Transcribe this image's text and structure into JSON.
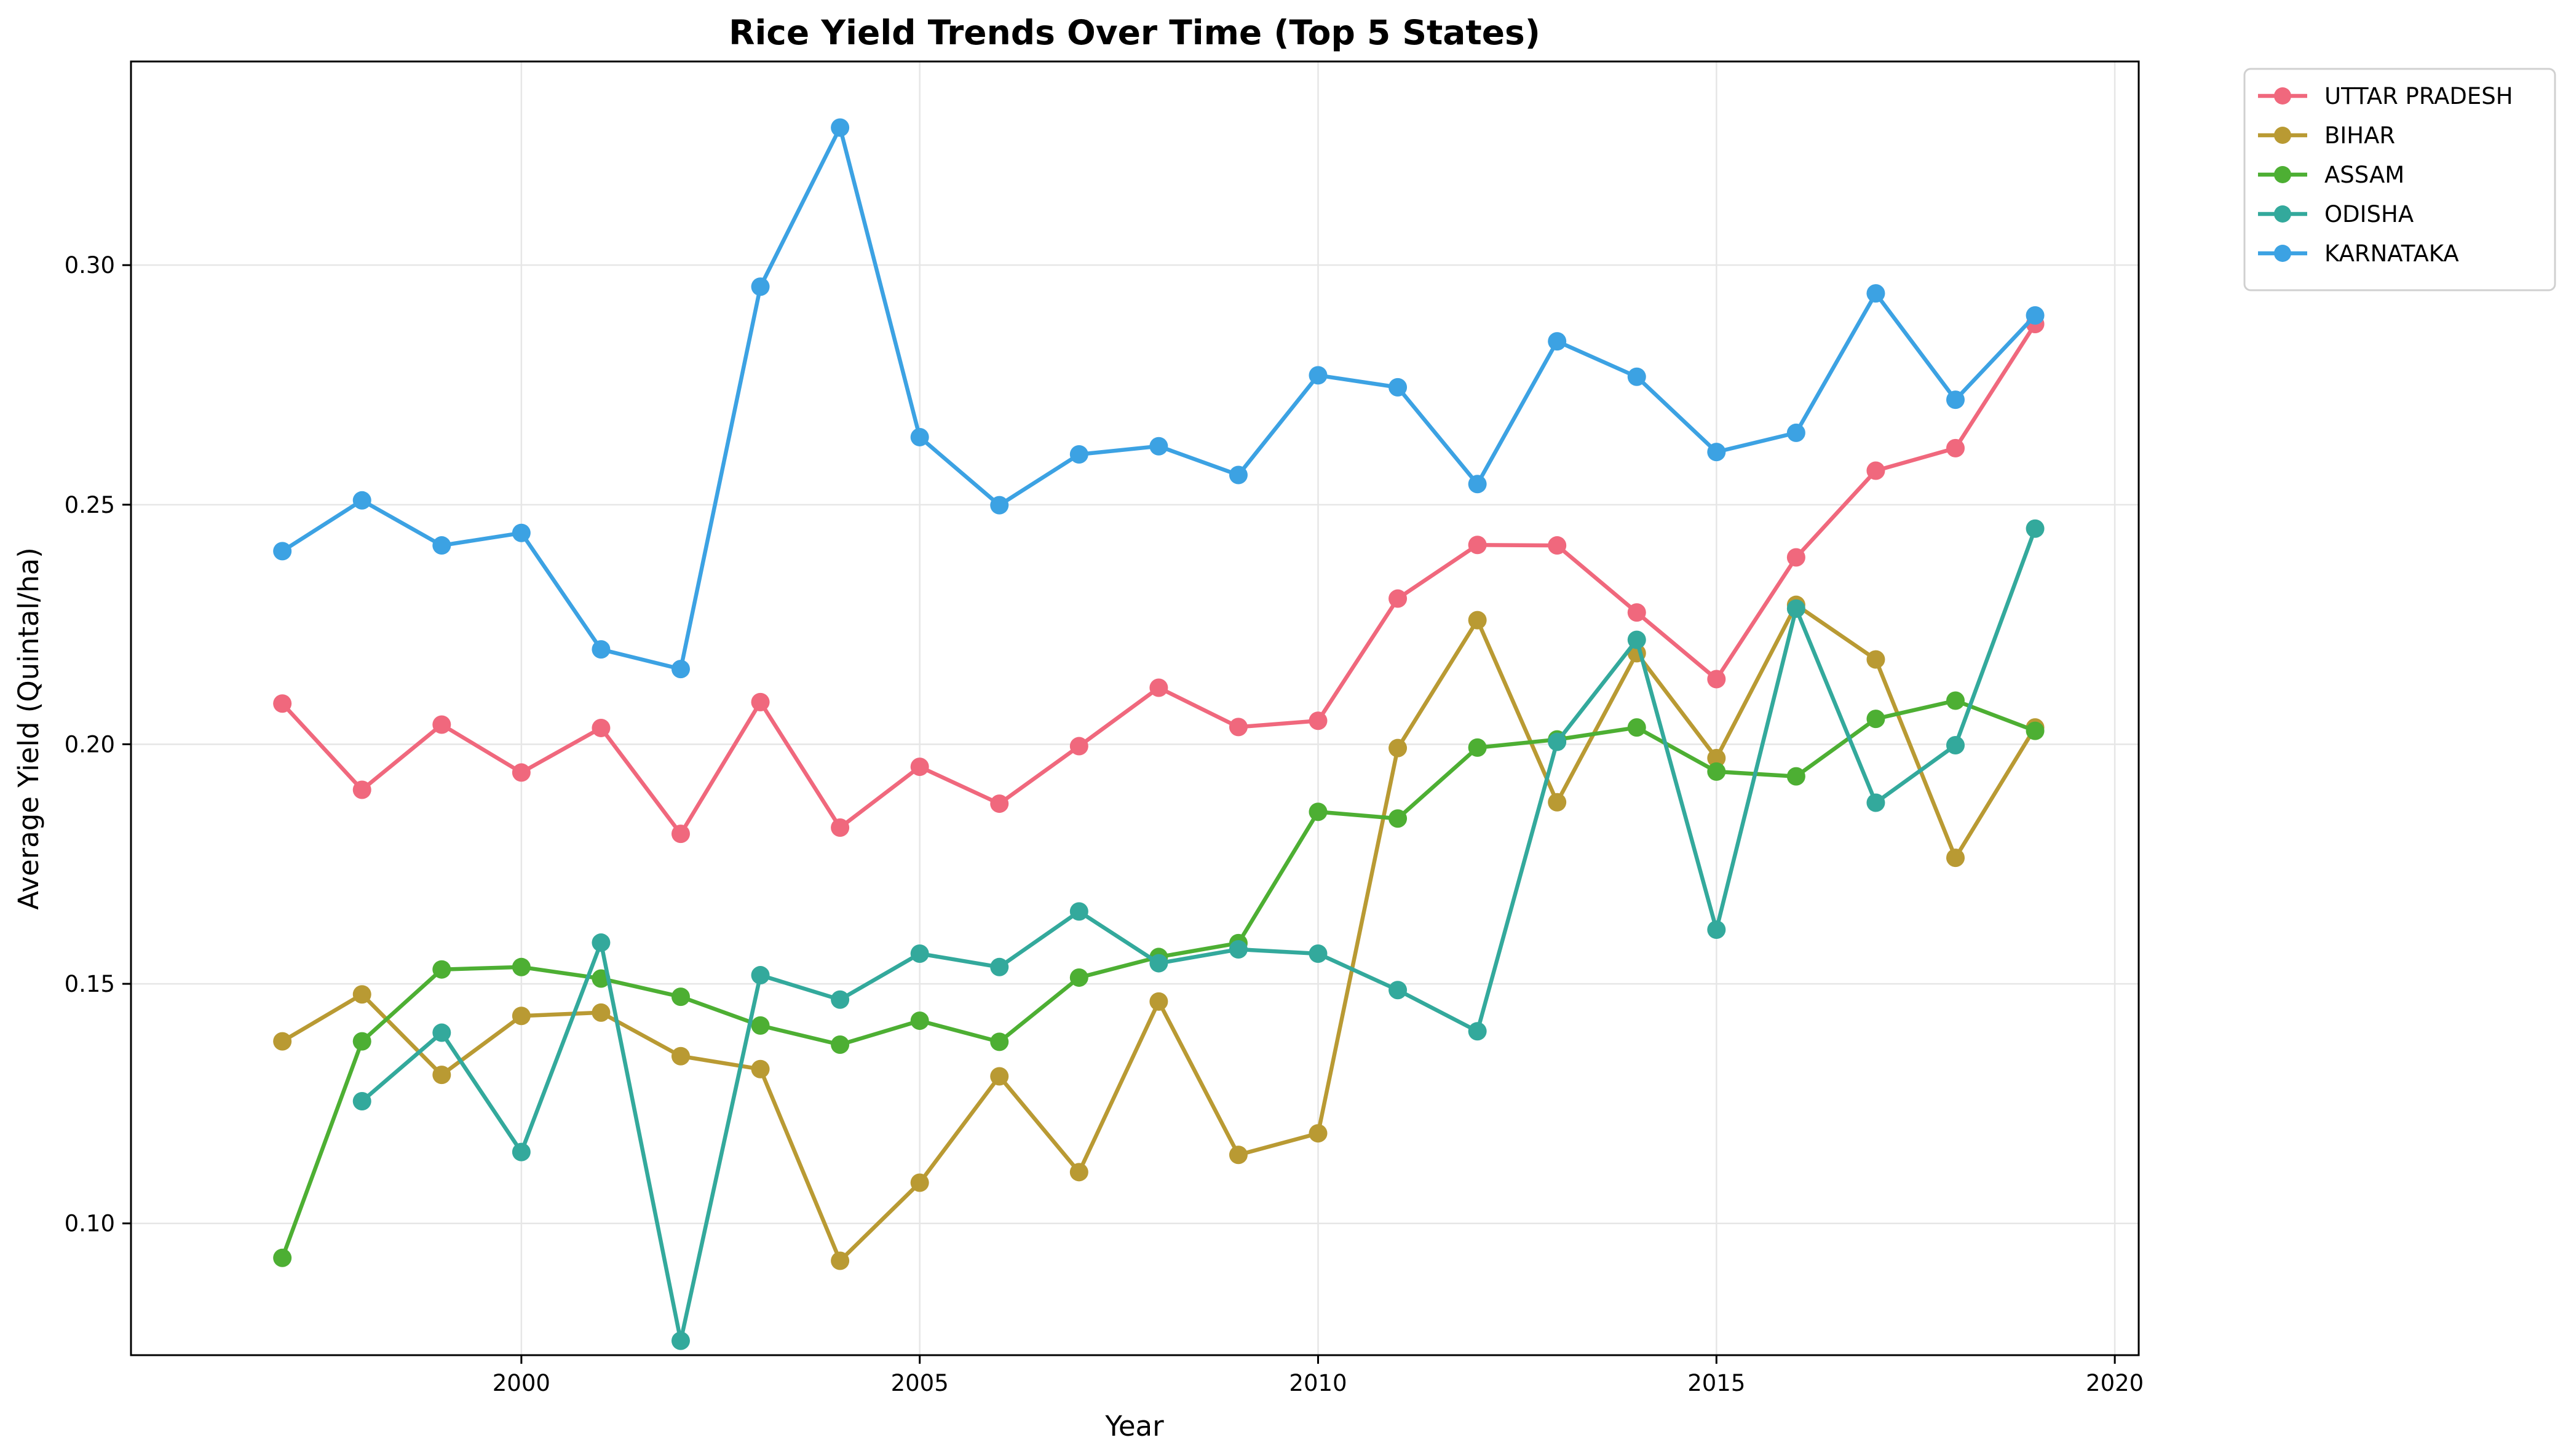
{
  "chart_data": {
    "type": "line",
    "title": "Rice Yield Trends Over Time (Top 5 States)",
    "xlabel": "Year",
    "ylabel": "Average Yield (Quintal/ha)",
    "xlim": [
      1995.1,
      2020.3
    ],
    "ylim": [
      0.0725,
      0.3425
    ],
    "xticks": [
      2000,
      2005,
      2010,
      2015,
      2020
    ],
    "yticks": [
      0.1,
      0.15,
      0.2,
      0.25,
      0.3
    ],
    "xtick_labels": [
      "2000",
      "2005",
      "2010",
      "2015",
      "2020"
    ],
    "ytick_labels": [
      "0.10",
      "0.15",
      "0.20",
      "0.25",
      "0.30"
    ],
    "grid": true,
    "legend_position": "outside-top-right",
    "series": [
      {
        "name": "UTTAR PRADESH",
        "color": "#f0687d",
        "x": [
          1997,
          1998,
          1999,
          2000,
          2001,
          2002,
          2003,
          2004,
          2005,
          2006,
          2007,
          2008,
          2009,
          2010,
          2011,
          2012,
          2013,
          2014,
          2015,
          2016,
          2017,
          2018,
          2019
        ],
        "values": [
          0.2085,
          0.1905,
          0.2041,
          0.1941,
          0.2034,
          0.1813,
          0.2088,
          0.1826,
          0.1953,
          0.1876,
          0.1996,
          0.2118,
          0.2036,
          0.2049,
          0.2304,
          0.2416,
          0.2415,
          0.2275,
          0.2136,
          0.239,
          0.2571,
          0.2618,
          0.2877
        ]
      },
      {
        "name": "BIHAR",
        "color": "#b99a33",
        "x": [
          1997,
          1998,
          1999,
          2000,
          2001,
          2002,
          2003,
          2004,
          2005,
          2006,
          2007,
          2008,
          2009,
          2010,
          2011,
          2012,
          2013,
          2014,
          2015,
          2016,
          2017,
          2018,
          2019
        ],
        "values": [
          0.138,
          0.1478,
          0.131,
          0.1433,
          0.144,
          0.1349,
          0.1322,
          0.0922,
          0.1085,
          0.1307,
          0.1107,
          0.1463,
          0.1143,
          0.1188,
          0.1992,
          0.2259,
          0.1879,
          0.219,
          0.1971,
          0.2291,
          0.2177,
          0.1763,
          0.2035
        ]
      },
      {
        "name": "ASSAM",
        "color": "#4daf33",
        "x": [
          1997,
          1998,
          1999,
          2000,
          2001,
          2002,
          2003,
          2004,
          2005,
          2006,
          2007,
          2008,
          2009,
          2010,
          2011,
          2012,
          2013,
          2014,
          2015,
          2016,
          2017,
          2018,
          2019
        ],
        "values": [
          0.0928,
          0.138,
          0.153,
          0.1535,
          0.1511,
          0.1473,
          0.1413,
          0.1373,
          0.1423,
          0.1379,
          0.1513,
          0.1556,
          0.1585,
          0.1859,
          0.1845,
          0.1993,
          0.201,
          0.2035,
          0.1943,
          0.1933,
          0.2053,
          0.2091,
          0.2028
        ]
      },
      {
        "name": "ODISHA",
        "color": "#33a99c",
        "x": [
          1998,
          1999,
          2000,
          2001,
          2002,
          2003,
          2004,
          2005,
          2006,
          2007,
          2008,
          2009,
          2010,
          2011,
          2012,
          2013,
          2014,
          2015,
          2016,
          2017,
          2018,
          2019
        ],
        "values": [
          0.1255,
          0.1398,
          0.1149,
          0.1586,
          0.0755,
          0.1518,
          0.1467,
          0.1563,
          0.1535,
          0.1651,
          0.1543,
          0.1572,
          0.1563,
          0.1487,
          0.1401,
          0.2005,
          0.2218,
          0.1613,
          0.2283,
          0.1878,
          0.1998,
          0.245
        ]
      },
      {
        "name": "KARNATAKA",
        "color": "#3ca2e3",
        "x": [
          1997,
          1998,
          1999,
          2000,
          2001,
          2002,
          2003,
          2004,
          2005,
          2006,
          2007,
          2008,
          2009,
          2010,
          2011,
          2012,
          2013,
          2014,
          2015,
          2016,
          2017,
          2018,
          2019
        ],
        "values": [
          0.2403,
          0.2509,
          0.2415,
          0.2441,
          0.2198,
          0.2157,
          0.2955,
          0.3287,
          0.2641,
          0.2499,
          0.2605,
          0.2622,
          0.2562,
          0.277,
          0.2745,
          0.2543,
          0.2841,
          0.2767,
          0.261,
          0.265,
          0.2941,
          0.2719,
          0.2895
        ]
      }
    ]
  }
}
